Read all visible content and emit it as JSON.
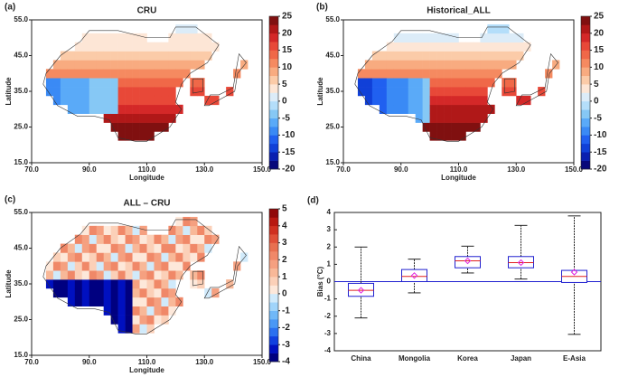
{
  "chart_data": [
    {
      "type": "map",
      "panel_label": "(a)",
      "title": "CRU",
      "xlabel": "Longitude",
      "ylabel": "Latitude",
      "xlim": [
        70,
        150
      ],
      "xticks": [
        {
          "value": 70,
          "label": "70.0"
        },
        {
          "value": 90,
          "label": "90.0"
        },
        {
          "value": 110,
          "label": "110.0"
        },
        {
          "value": 130,
          "label": "130.0"
        },
        {
          "value": 150,
          "label": "150.0"
        }
      ],
      "ylim": [
        15,
        55
      ],
      "yticks": [
        {
          "value": 15,
          "label": "15.0"
        },
        {
          "value": 25,
          "label": "25.0"
        },
        {
          "value": 35,
          "label": "35.0"
        },
        {
          "value": 45,
          "label": "45.0"
        },
        {
          "value": 55,
          "label": "55.0"
        }
      ],
      "clim": [
        -20,
        25
      ],
      "cticks": [
        -20,
        -15,
        -10,
        -5,
        0,
        5,
        10,
        15,
        20,
        25
      ],
      "colors": [
        "#08087a",
        "#0a1fb0",
        "#1040d8",
        "#2060f0",
        "#3a8af5",
        "#5aaaf8",
        "#86c8f5",
        "#b4defa",
        "#dcecf8",
        "#fde6d6",
        "#fbcba8",
        "#f8ab80",
        "#f58a60",
        "#f06848",
        "#e84838",
        "#d42828",
        "#b01818",
        "#801010"
      ]
    },
    {
      "type": "map",
      "panel_label": "(b)",
      "title": "Historical_ALL",
      "xlabel": "Longitude",
      "ylabel": "Latitude",
      "xlim": [
        70,
        150
      ],
      "xticks": [
        {
          "value": 70,
          "label": "70.0"
        },
        {
          "value": 90,
          "label": "90.0"
        },
        {
          "value": 110,
          "label": "110.0"
        },
        {
          "value": 130,
          "label": "130.0"
        },
        {
          "value": 150,
          "label": "150.0"
        }
      ],
      "ylim": [
        15,
        55
      ],
      "yticks": [
        {
          "value": 15,
          "label": "15.0"
        },
        {
          "value": 25,
          "label": "25.0"
        },
        {
          "value": 35,
          "label": "35.0"
        },
        {
          "value": 45,
          "label": "45.0"
        },
        {
          "value": 55,
          "label": "55.0"
        }
      ],
      "clim": [
        -20,
        25
      ],
      "cticks": [
        -20,
        -15,
        -10,
        -5,
        0,
        5,
        10,
        15,
        20,
        25
      ],
      "colors": [
        "#08087a",
        "#0a1fb0",
        "#1040d8",
        "#2060f0",
        "#3a8af5",
        "#5aaaf8",
        "#86c8f5",
        "#b4defa",
        "#dcecf8",
        "#fde6d6",
        "#fbcba8",
        "#f8ab80",
        "#f58a60",
        "#f06848",
        "#e84838",
        "#d42828",
        "#b01818",
        "#801010"
      ]
    },
    {
      "type": "map",
      "panel_label": "(c)",
      "title": "ALL – CRU",
      "xlabel": "Longitude",
      "ylabel": "Latitude",
      "xlim": [
        70,
        150
      ],
      "xticks": [
        {
          "value": 70,
          "label": "70.0"
        },
        {
          "value": 90,
          "label": "90.0"
        },
        {
          "value": 110,
          "label": "110.0"
        },
        {
          "value": 130,
          "label": "130.0"
        },
        {
          "value": 150,
          "label": "150.0"
        }
      ],
      "ylim": [
        15,
        55
      ],
      "yticks": [
        {
          "value": 15,
          "label": "15.0"
        },
        {
          "value": 25,
          "label": "25.0"
        },
        {
          "value": 35,
          "label": "35.0"
        },
        {
          "value": 45,
          "label": "45.0"
        },
        {
          "value": 55,
          "label": "55.0"
        }
      ],
      "clim": [
        -4,
        5
      ],
      "cticks": [
        -4,
        -3,
        -2,
        -1,
        0,
        1,
        2,
        3,
        4,
        5
      ],
      "colors": [
        "#000080",
        "#0010c0",
        "#1040e0",
        "#2a70f0",
        "#4a98f5",
        "#70b8f8",
        "#a0d4fa",
        "#d0eafb",
        "#fde8da",
        "#fbd0b8",
        "#f8b898",
        "#f5a080",
        "#f08868",
        "#e87050",
        "#e05038",
        "#d03020",
        "#b81810",
        "#900808"
      ]
    },
    {
      "type": "box",
      "panel_label": "(d)",
      "ylabel": "Bias (°C)",
      "categories": [
        "China",
        "Mongolia",
        "Korea",
        "Japan",
        "E-Asia"
      ],
      "ylim": [
        -4,
        4
      ],
      "yticks": [
        -4,
        -3,
        -2,
        -1,
        0,
        1,
        2,
        3,
        4
      ],
      "hline": 0,
      "box_color": "#2020d0",
      "median_color": "#e02020",
      "mean_color": "#e020e0",
      "boxes": [
        {
          "whisker_low": -2.1,
          "q1": -0.85,
          "median": -0.5,
          "q3": -0.1,
          "whisker_high": 2.0,
          "mean": -0.5
        },
        {
          "whisker_low": -0.65,
          "q1": 0.0,
          "median": 0.3,
          "q3": 0.7,
          "whisker_high": 1.3,
          "mean": 0.35
        },
        {
          "whisker_low": 0.5,
          "q1": 0.8,
          "median": 1.2,
          "q3": 1.45,
          "whisker_high": 2.05,
          "mean": 1.2
        },
        {
          "whisker_low": 0.15,
          "q1": 0.8,
          "median": 1.1,
          "q3": 1.45,
          "whisker_high": 3.25,
          "mean": 1.1
        },
        {
          "whisker_low": -3.05,
          "q1": -0.05,
          "median": 0.3,
          "q3": 0.65,
          "whisker_high": 3.8,
          "mean": 0.55
        }
      ]
    }
  ]
}
